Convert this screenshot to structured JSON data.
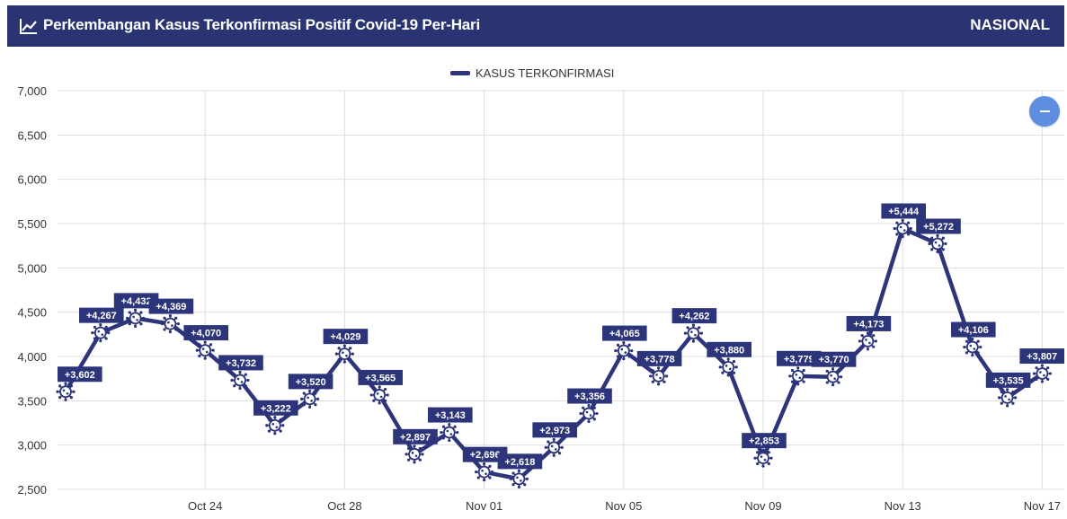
{
  "header": {
    "title": "Perkembangan Kasus Terkonfirmasi Positif Covid-19 Per-Hari",
    "region": "NASIONAL",
    "icon": "trend-chart-icon"
  },
  "colors": {
    "header_bg": "#2a3472",
    "series": "#2d357a",
    "grid": "#dddddd",
    "zoom_button": "#5e8ee0"
  },
  "zoom_button": {
    "icon": "minus-icon"
  },
  "chart_data": {
    "type": "line",
    "legend": {
      "position": "top-center",
      "entries": [
        "KASUS TERKONFIRMASI"
      ]
    },
    "x_dates": [
      "Oct 20",
      "Oct 21",
      "Oct 22",
      "Oct 23",
      "Oct 24",
      "Oct 25",
      "Oct 26",
      "Oct 27",
      "Oct 28",
      "Oct 29",
      "Oct 30",
      "Oct 31",
      "Nov 01",
      "Nov 02",
      "Nov 03",
      "Nov 04",
      "Nov 05",
      "Nov 06",
      "Nov 07",
      "Nov 08",
      "Nov 09",
      "Nov 10",
      "Nov 11",
      "Nov 12",
      "Nov 13",
      "Nov 14",
      "Nov 15",
      "Nov 16",
      "Nov 17"
    ],
    "x_ticks": [
      "Oct 24",
      "Oct 28",
      "Nov 01",
      "Nov 05",
      "Nov 09",
      "Nov 13",
      "Nov 17"
    ],
    "y_ticks": [
      "2,500",
      "3,000",
      "3,500",
      "4,000",
      "4,500",
      "5,000",
      "5,500",
      "6,000",
      "6,500",
      "7,000"
    ],
    "ylim": [
      2500,
      7000
    ],
    "grid": true,
    "series": [
      {
        "name": "KASUS TERKONFIRMASI",
        "values": [
          3602,
          4267,
          4432,
          4369,
          4070,
          3732,
          3222,
          3520,
          4029,
          3565,
          2897,
          3143,
          2696,
          2618,
          2973,
          3356,
          4065,
          3778,
          4262,
          3880,
          2853,
          3779,
          3770,
          4173,
          5444,
          5272,
          4106,
          3535,
          3807
        ],
        "labels": [
          "+3,602",
          "+4,267",
          "+4,432",
          "+4,369",
          "+4,070",
          "+3,732",
          "+3,222",
          "+3,520",
          "+4,029",
          "+3,565",
          "+2,897",
          "+3,143",
          "+2,696",
          "+2,618",
          "+2,973",
          "+3,356",
          "+4,065",
          "+3,778",
          "+4,262",
          "+3,880",
          "+2,853",
          "+3,779",
          "+3,770",
          "+4,173",
          "+5,444",
          "+5,272",
          "+4,106",
          "+3,535",
          "+3,807"
        ],
        "marker_icon": "virus-icon"
      }
    ]
  }
}
